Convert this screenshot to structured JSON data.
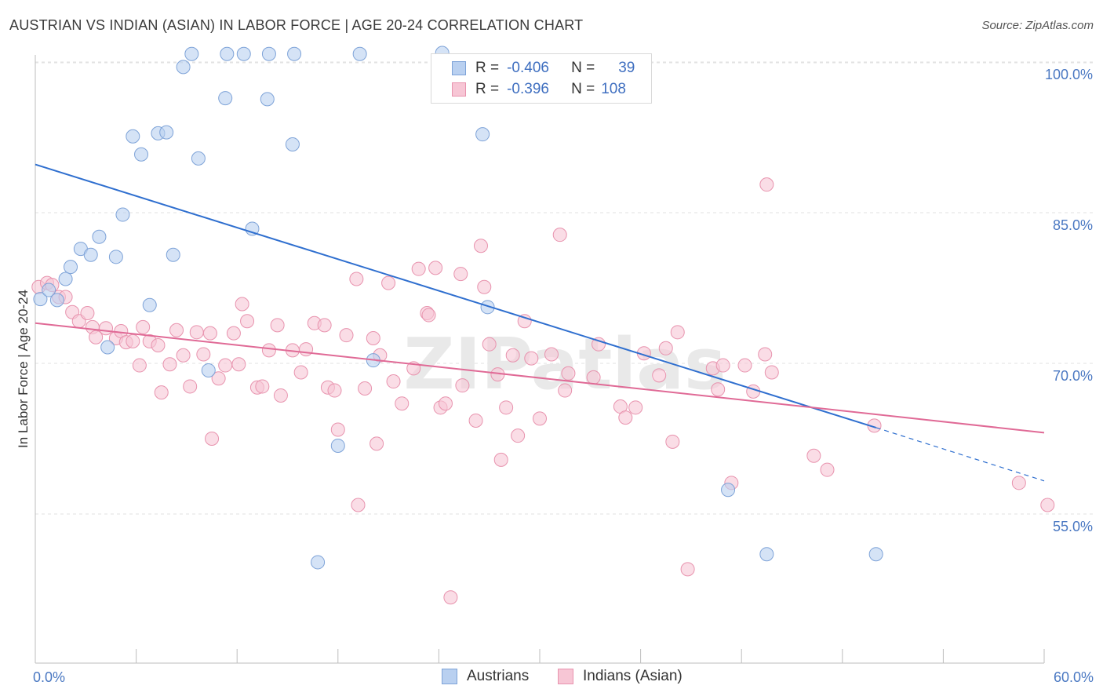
{
  "title": "AUSTRIAN VS INDIAN (ASIAN) IN LABOR FORCE | AGE 20-24 CORRELATION CHART",
  "source": "Source: ZipAtlas.com",
  "watermark": "ZIPatlas",
  "legend_top": {
    "rows": [
      {
        "r_label": "R =",
        "r_value": "-0.406",
        "n_label": "N =",
        "n_value": "39"
      },
      {
        "r_label": "R =",
        "r_value": "-0.396",
        "n_label": "N =",
        "n_value": "108"
      }
    ]
  },
  "legend_bottom": [
    {
      "label": "Austrians"
    },
    {
      "label": "Indians (Asian)"
    }
  ],
  "colors": {
    "blue_fill": "#b9d0f0",
    "blue_stroke": "#7ea3d8",
    "blue_line": "#2f6fcf",
    "pink_fill": "#f7c6d5",
    "pink_stroke": "#e893ae",
    "pink_line": "#e06a96",
    "axis_text": "#4a78c2",
    "grid": "#e2e2e2"
  },
  "chart_data": {
    "type": "scatter",
    "title": "AUSTRIAN VS INDIAN (ASIAN) IN LABOR FORCE | AGE 20-24 CORRELATION CHART",
    "xlabel": "",
    "ylabel": "In Labor Force | Age 20-24",
    "xlim": [
      0,
      60
    ],
    "ylim": [
      40,
      101.5
    ],
    "x_tick_labels": [
      "0.0%",
      "60.0%"
    ],
    "y_ticks": [
      55,
      70,
      85,
      100
    ],
    "y_tick_labels": [
      "55.0%",
      "70.0%",
      "85.0%",
      "100.0%"
    ],
    "x_minor_ticks": [
      0,
      6,
      12,
      18,
      24,
      30,
      36,
      42,
      48,
      54,
      60
    ],
    "series": [
      {
        "name": "Austrians",
        "color": "blue",
        "R": -0.406,
        "N": 39,
        "trend": {
          "x0": 0,
          "y0": 89.8,
          "x1": 50,
          "y1": 63.6,
          "dash_to_x": 60,
          "dash_to_y": 58.3
        },
        "points": [
          [
            0.3,
            76.4
          ],
          [
            0.8,
            77.3
          ],
          [
            1.3,
            76.3
          ],
          [
            1.8,
            78.4
          ],
          [
            2.1,
            79.6
          ],
          [
            2.7,
            81.4
          ],
          [
            3.3,
            80.8
          ],
          [
            3.8,
            82.6
          ],
          [
            4.3,
            71.6
          ],
          [
            4.8,
            80.6
          ],
          [
            5.2,
            84.8
          ],
          [
            5.8,
            92.6
          ],
          [
            6.3,
            90.8
          ],
          [
            6.8,
            75.8
          ],
          [
            7.3,
            92.9
          ],
          [
            7.8,
            93.0
          ],
          [
            8.2,
            80.8
          ],
          [
            8.8,
            99.5
          ],
          [
            9.3,
            100.8
          ],
          [
            9.7,
            90.4
          ],
          [
            10.3,
            69.3
          ],
          [
            11.3,
            96.4
          ],
          [
            11.4,
            100.8
          ],
          [
            12.4,
            100.8
          ],
          [
            12.9,
            83.4
          ],
          [
            13.8,
            96.3
          ],
          [
            13.9,
            100.8
          ],
          [
            15.3,
            91.8
          ],
          [
            15.4,
            100.8
          ],
          [
            16.8,
            50.2
          ],
          [
            18.0,
            61.8
          ],
          [
            19.3,
            100.8
          ],
          [
            20.1,
            70.3
          ],
          [
            24.2,
            100.9
          ],
          [
            26.6,
            92.8
          ],
          [
            26.9,
            75.6
          ],
          [
            41.2,
            57.4
          ],
          [
            43.5,
            51.0
          ],
          [
            50.0,
            51.0
          ]
        ]
      },
      {
        "name": "Indians (Asian)",
        "color": "pink",
        "R": -0.396,
        "N": 108,
        "trend": {
          "x0": 0,
          "y0": 74.0,
          "x1": 60,
          "y1": 63.1
        },
        "points": [
          [
            0.2,
            77.6
          ],
          [
            0.7,
            78.0
          ],
          [
            1.0,
            77.8
          ],
          [
            1.4,
            76.6
          ],
          [
            1.8,
            76.6
          ],
          [
            2.2,
            75.1
          ],
          [
            2.6,
            74.2
          ],
          [
            3.1,
            75.0
          ],
          [
            3.4,
            73.6
          ],
          [
            3.6,
            72.6
          ],
          [
            4.2,
            73.5
          ],
          [
            4.8,
            72.5
          ],
          [
            5.1,
            73.2
          ],
          [
            5.4,
            72.1
          ],
          [
            5.8,
            72.2
          ],
          [
            6.2,
            69.8
          ],
          [
            6.4,
            73.6
          ],
          [
            6.8,
            72.2
          ],
          [
            7.3,
            71.8
          ],
          [
            7.5,
            67.1
          ],
          [
            8.0,
            69.9
          ],
          [
            8.4,
            73.3
          ],
          [
            8.8,
            70.8
          ],
          [
            9.2,
            67.7
          ],
          [
            9.6,
            73.1
          ],
          [
            10.0,
            70.9
          ],
          [
            10.4,
            73.0
          ],
          [
            10.5,
            62.5
          ],
          [
            10.9,
            68.5
          ],
          [
            11.3,
            69.8
          ],
          [
            11.8,
            73.0
          ],
          [
            12.1,
            69.9
          ],
          [
            12.3,
            75.9
          ],
          [
            12.6,
            74.2
          ],
          [
            13.2,
            67.6
          ],
          [
            13.5,
            67.7
          ],
          [
            13.9,
            71.3
          ],
          [
            14.4,
            73.8
          ],
          [
            14.6,
            66.8
          ],
          [
            15.3,
            71.3
          ],
          [
            15.8,
            69.1
          ],
          [
            16.1,
            71.4
          ],
          [
            16.6,
            74.0
          ],
          [
            17.2,
            73.8
          ],
          [
            17.4,
            67.6
          ],
          [
            17.8,
            67.3
          ],
          [
            18.0,
            63.4
          ],
          [
            18.5,
            72.8
          ],
          [
            19.1,
            78.4
          ],
          [
            19.2,
            55.9
          ],
          [
            19.6,
            67.5
          ],
          [
            20.1,
            72.5
          ],
          [
            20.3,
            62.0
          ],
          [
            20.5,
            70.8
          ],
          [
            21.0,
            78.0
          ],
          [
            21.3,
            68.2
          ],
          [
            21.8,
            66.0
          ],
          [
            22.5,
            69.5
          ],
          [
            22.8,
            79.4
          ],
          [
            23.3,
            75.0
          ],
          [
            23.4,
            74.8
          ],
          [
            23.8,
            79.5
          ],
          [
            24.1,
            65.6
          ],
          [
            24.4,
            66.0
          ],
          [
            24.7,
            46.7
          ],
          [
            25.3,
            78.9
          ],
          [
            25.4,
            67.8
          ],
          [
            26.2,
            64.3
          ],
          [
            26.5,
            81.7
          ],
          [
            26.7,
            77.6
          ],
          [
            27.0,
            71.9
          ],
          [
            27.5,
            68.9
          ],
          [
            27.7,
            60.4
          ],
          [
            28.0,
            65.6
          ],
          [
            28.4,
            70.8
          ],
          [
            28.7,
            62.8
          ],
          [
            29.1,
            74.2
          ],
          [
            29.5,
            70.5
          ],
          [
            30.0,
            64.5
          ],
          [
            30.7,
            70.9
          ],
          [
            31.2,
            82.8
          ],
          [
            31.5,
            67.3
          ],
          [
            31.7,
            69.0
          ],
          [
            33.2,
            68.6
          ],
          [
            33.5,
            71.9
          ],
          [
            34.8,
            65.7
          ],
          [
            35.1,
            64.6
          ],
          [
            35.7,
            65.6
          ],
          [
            36.2,
            71.0
          ],
          [
            37.1,
            68.8
          ],
          [
            37.5,
            71.5
          ],
          [
            37.9,
            62.2
          ],
          [
            38.2,
            73.1
          ],
          [
            38.8,
            49.5
          ],
          [
            40.3,
            69.5
          ],
          [
            40.6,
            67.4
          ],
          [
            40.9,
            69.8
          ],
          [
            41.4,
            58.1
          ],
          [
            42.2,
            69.8
          ],
          [
            42.7,
            67.2
          ],
          [
            43.4,
            70.9
          ],
          [
            43.5,
            87.8
          ],
          [
            43.8,
            69.1
          ],
          [
            46.3,
            60.8
          ],
          [
            47.1,
            59.4
          ],
          [
            49.9,
            63.8
          ],
          [
            58.5,
            58.1
          ],
          [
            60.2,
            55.9
          ]
        ]
      }
    ]
  }
}
